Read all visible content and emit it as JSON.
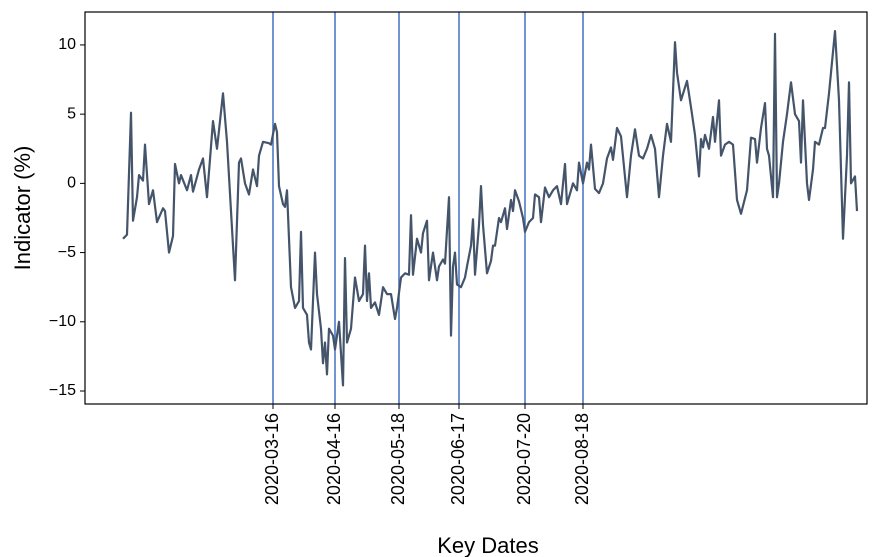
{
  "chart_data": {
    "type": "line",
    "xlabel": "Key Dates",
    "ylabel": "Indicator (%)",
    "x": [
      "2020-01-01",
      "2020-01-03",
      "2020-01-05",
      "2020-01-06",
      "2020-01-08",
      "2020-01-09",
      "2020-01-11",
      "2020-01-12",
      "2020-01-14",
      "2020-01-16",
      "2020-01-18",
      "2020-01-21",
      "2020-01-22",
      "2020-01-24",
      "2020-01-26",
      "2020-01-27",
      "2020-01-29",
      "2020-01-30",
      "2020-02-02",
      "2020-02-04",
      "2020-02-05",
      "2020-02-08",
      "2020-02-10",
      "2020-02-12",
      "2020-02-15",
      "2020-02-17",
      "2020-02-20",
      "2020-02-22",
      "2020-02-26",
      "2020-02-28",
      "2020-02-29",
      "2020-03-02",
      "2020-03-04",
      "2020-03-06",
      "2020-03-08",
      "2020-03-09",
      "2020-03-11",
      "2020-03-14",
      "2020-03-15",
      "2020-03-17",
      "2020-03-18",
      "2020-03-19",
      "2020-03-21",
      "2020-03-22",
      "2020-03-23",
      "2020-03-25",
      "2020-03-27",
      "2020-03-29",
      "2020-03-30",
      "2020-03-31",
      "2020-04-02",
      "2020-04-03",
      "2020-04-04",
      "2020-04-06",
      "2020-04-07",
      "2020-04-09",
      "2020-04-10",
      "2020-04-11",
      "2020-04-12",
      "2020-04-13",
      "2020-04-15",
      "2020-04-16",
      "2020-04-18",
      "2020-04-20",
      "2020-04-21",
      "2020-04-22",
      "2020-04-24",
      "2020-04-26",
      "2020-04-28",
      "2020-04-30",
      "2020-05-01",
      "2020-05-02",
      "2020-05-03",
      "2020-05-04",
      "2020-05-06",
      "2020-05-08",
      "2020-05-10",
      "2020-05-12",
      "2020-05-14",
      "2020-05-16",
      "2020-05-17",
      "2020-05-19",
      "2020-05-21",
      "2020-05-23",
      "2020-05-24",
      "2020-05-25",
      "2020-05-27",
      "2020-05-29",
      "2020-05-30",
      "2020-06-01",
      "2020-06-02",
      "2020-06-04",
      "2020-06-06",
      "2020-06-07",
      "2020-06-09",
      "2020-06-10",
      "2020-06-12",
      "2020-06-13",
      "2020-06-14",
      "2020-06-15",
      "2020-06-16",
      "2020-06-18",
      "2020-06-20",
      "2020-06-21",
      "2020-06-23",
      "2020-06-24",
      "2020-06-25",
      "2020-06-27",
      "2020-06-28",
      "2020-06-29",
      "2020-07-01",
      "2020-07-03",
      "2020-07-04",
      "2020-07-05",
      "2020-07-07",
      "2020-07-08",
      "2020-07-10",
      "2020-07-11",
      "2020-07-13",
      "2020-07-14",
      "2020-07-15",
      "2020-07-17",
      "2020-07-19",
      "2020-07-20",
      "2020-07-22",
      "2020-07-24",
      "2020-07-25",
      "2020-07-27",
      "2020-07-28",
      "2020-07-30",
      "2020-08-01",
      "2020-08-03",
      "2020-08-05",
      "2020-08-07",
      "2020-08-09",
      "2020-08-10",
      "2020-08-12",
      "2020-08-13",
      "2020-08-15",
      "2020-08-16",
      "2020-08-18",
      "2020-08-20",
      "2020-08-21",
      "2020-08-22",
      "2020-08-24",
      "2020-08-26",
      "2020-08-28",
      "2020-08-30",
      "2020-09-01",
      "2020-09-02",
      "2020-09-04",
      "2020-09-06",
      "2020-09-09",
      "2020-09-11",
      "2020-09-13",
      "2020-09-15",
      "2020-09-17",
      "2020-09-19",
      "2020-09-21",
      "2020-09-23",
      "2020-09-25",
      "2020-09-27",
      "2020-09-29",
      "2020-10-01",
      "2020-10-03",
      "2020-10-04",
      "2020-10-06",
      "2020-10-09",
      "2020-10-11",
      "2020-10-13",
      "2020-10-15",
      "2020-10-16",
      "2020-10-17",
      "2020-10-18",
      "2020-10-20",
      "2020-10-22",
      "2020-10-23",
      "2020-10-25",
      "2020-10-26",
      "2020-10-28",
      "2020-10-30",
      "2020-11-01",
      "2020-11-03",
      "2020-11-05",
      "2020-11-08",
      "2020-11-10",
      "2020-11-12",
      "2020-11-13",
      "2020-11-15",
      "2020-11-17",
      "2020-11-18",
      "2020-11-19",
      "2020-11-21",
      "2020-11-22",
      "2020-11-23",
      "2020-11-24",
      "2020-11-26",
      "2020-11-28",
      "2020-11-30",
      "2020-12-02",
      "2020-12-04",
      "2020-12-05",
      "2020-12-06",
      "2020-12-08",
      "2020-12-09",
      "2020-12-11",
      "2020-12-12",
      "2020-12-14",
      "2020-12-16",
      "2020-12-17",
      "2020-12-19",
      "2020-12-20",
      "2020-12-22",
      "2020-12-24",
      "2020-12-26",
      "2020-12-28",
      "2020-12-29",
      "2020-12-30",
      "2021-01-01",
      "2021-01-02"
    ],
    "values": [
      -4,
      -3.7,
      5.1,
      -2.7,
      -1,
      0.6,
      0.2,
      2.8,
      -1.5,
      -0.5,
      -2.8,
      -1.8,
      -2,
      -5,
      -3.8,
      1.4,
      0,
      0.6,
      -0.5,
      0.6,
      -0.6,
      1,
      1.8,
      -1,
      4.5,
      2.5,
      6.5,
      3,
      -7,
      1.5,
      1.8,
      0,
      -0.8,
      1,
      -0.2,
      2,
      3,
      2.9,
      2.8,
      4.3,
      3.7,
      -0.2,
      -1.5,
      -1.7,
      -0.5,
      -7.5,
      -9,
      -8.5,
      -3.5,
      -9,
      -9.5,
      -11.5,
      -12,
      -5,
      -8,
      -10.5,
      -13,
      -11.5,
      -13.8,
      -10.5,
      -11,
      -12,
      -10,
      -14.6,
      -5.4,
      -11.5,
      -10.5,
      -6.8,
      -8.5,
      -8,
      -4.5,
      -8.5,
      -6.5,
      -9,
      -8.6,
      -9.5,
      -7.5,
      -8,
      -8,
      -9.8,
      -9,
      -6.8,
      -6.5,
      -6.6,
      -2.3,
      -6.6,
      -4,
      -5,
      -3.6,
      -2.7,
      -7,
      -5,
      -7,
      -6,
      -5.5,
      -5.8,
      -1,
      -11,
      -6,
      -5,
      -7.3,
      -7.5,
      -6.8,
      -6,
      -4.5,
      -2.6,
      -6.6,
      -3,
      -0.2,
      -3,
      -6.5,
      -5.6,
      -4.5,
      -4.5,
      -2.5,
      -2.8,
      -1.8,
      -3.3,
      -1.2,
      -2,
      -0.5,
      -1.3,
      -2.5,
      -3.5,
      -2.8,
      -2.5,
      -0.8,
      -1,
      -2.8,
      -0.3,
      -1,
      -0.5,
      -0.2,
      -1.5,
      1.4,
      -1.5,
      -0.5,
      0,
      -0.5,
      1.5,
      0,
      1.5,
      1,
      2.8,
      -0.4,
      -0.7,
      0,
      1.8,
      2.6,
      1.7,
      4,
      3.4,
      -1,
      2,
      3.9,
      2,
      1.8,
      2.5,
      3.5,
      2.5,
      -1,
      2,
      4.3,
      3,
      10.2,
      8,
      6,
      7.4,
      5.5,
      3.5,
      0.5,
      3.2,
      2.6,
      3.5,
      2.5,
      4.8,
      3,
      6,
      2,
      2.8,
      3,
      2.8,
      -1.2,
      -2.2,
      -0.5,
      3.3,
      3.2,
      1.5,
      4,
      5.8,
      2.5,
      2,
      -1,
      10.8,
      -1,
      0,
      3,
      5,
      7.3,
      5,
      4.5,
      1.5,
      6,
      0,
      -1.2,
      1,
      3,
      2.8,
      4,
      4,
      6.5,
      8,
      11,
      6,
      -4,
      2,
      7.3,
      0,
      0.5,
      -2
    ],
    "line_color": "#44546a",
    "vline_color": "#4472c4",
    "xlim": [
      "2019-12-13",
      "2021-01-07"
    ],
    "xticks": [
      "2020-03-16",
      "2020-04-16",
      "2020-05-18",
      "2020-06-17",
      "2020-07-20",
      "2020-08-18"
    ],
    "ylim": [
      -15.94,
      12.38
    ],
    "yticks": [
      {
        "value": -15,
        "label": "−15"
      },
      {
        "value": -10,
        "label": "−10"
      },
      {
        "value": -5,
        "label": "−5"
      },
      0,
      5,
      10
    ]
  }
}
